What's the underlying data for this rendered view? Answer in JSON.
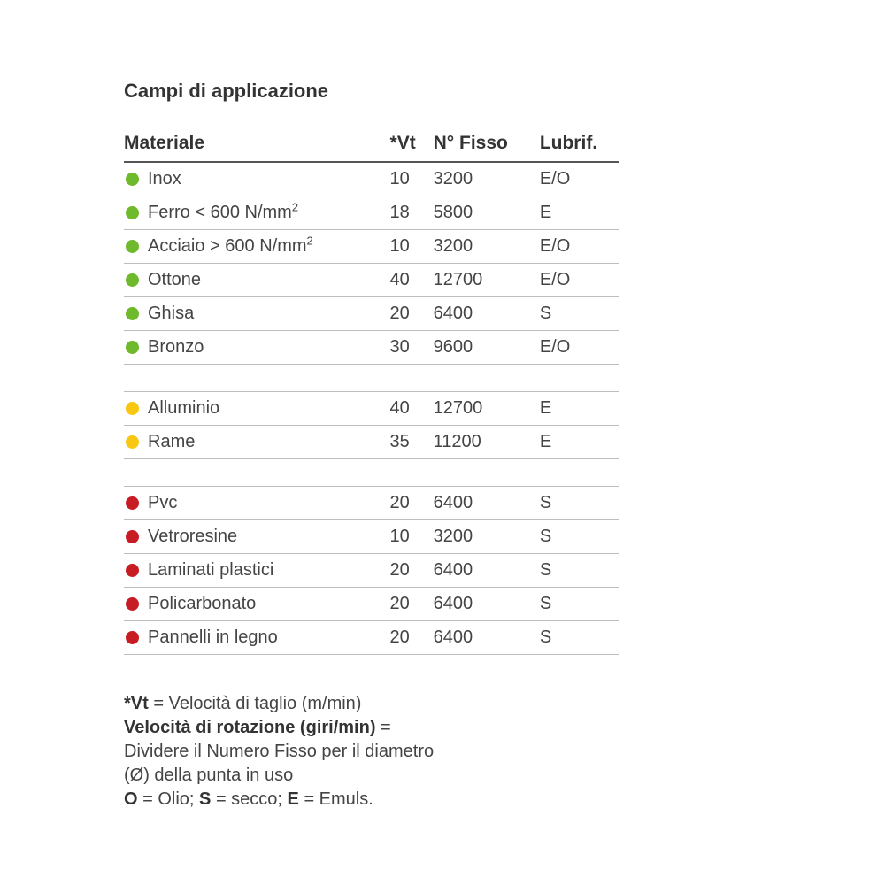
{
  "title": "Campi di applicazione",
  "colors": {
    "green": "#6fb92c",
    "yellow": "#f7c712",
    "red": "#c81c24"
  },
  "columns": {
    "material": "Materiale",
    "vt": "*Vt",
    "fisso": "N° Fisso",
    "lubr": "Lubrif."
  },
  "rows": [
    {
      "group": "green",
      "material": "Inox",
      "vt": "10",
      "fisso": "3200",
      "lubr": "E/O"
    },
    {
      "group": "green",
      "material": "Ferro < 600 N/mm",
      "sup": "2",
      "vt": "18",
      "fisso": "5800",
      "lubr": "E"
    },
    {
      "group": "green",
      "material": "Acciaio > 600 N/mm",
      "sup": "2",
      "vt": "10",
      "fisso": "3200",
      "lubr": "E/O"
    },
    {
      "group": "green",
      "material": "Ottone",
      "vt": "40",
      "fisso": "12700",
      "lubr": "E/O"
    },
    {
      "group": "green",
      "material": "Ghisa",
      "vt": "20",
      "fisso": "6400",
      "lubr": "S"
    },
    {
      "group": "green",
      "material": "Bronzo",
      "vt": "30",
      "fisso": "9600",
      "lubr": "E/O"
    },
    {
      "gap": true
    },
    {
      "group": "yellow",
      "material": "Alluminio",
      "vt": "40",
      "fisso": "12700",
      "lubr": "E"
    },
    {
      "group": "yellow",
      "material": "Rame",
      "vt": "35",
      "fisso": "11200",
      "lubr": "E"
    },
    {
      "gap": true
    },
    {
      "group": "red",
      "material": "Pvc",
      "vt": "20",
      "fisso": "6400",
      "lubr": "S"
    },
    {
      "group": "red",
      "material": "Vetroresine",
      "vt": "10",
      "fisso": "3200",
      "lubr": "S"
    },
    {
      "group": "red",
      "material": "Laminati plastici",
      "vt": "20",
      "fisso": "6400",
      "lubr": "S"
    },
    {
      "group": "red",
      "material": "Policarbonato",
      "vt": "20",
      "fisso": "6400",
      "lubr": "S"
    },
    {
      "group": "red",
      "material": "Pannelli in legno",
      "vt": "20",
      "fisso": "6400",
      "lubr": "S"
    }
  ],
  "legend": {
    "l1a": "*Vt",
    "l1b": " = Velocità di taglio (m/min)",
    "l2a": "Velocità di rotazione (giri/min)",
    "l2b": " =",
    "l3": "Dividere il Numero Fisso per il diametro",
    "l4": "(Ø) della punta in uso",
    "l5a": "O",
    "l5b": " = Olio; ",
    "l5c": "S",
    "l5d": " = secco; ",
    "l5e": "E",
    "l5f": " = Emuls."
  }
}
